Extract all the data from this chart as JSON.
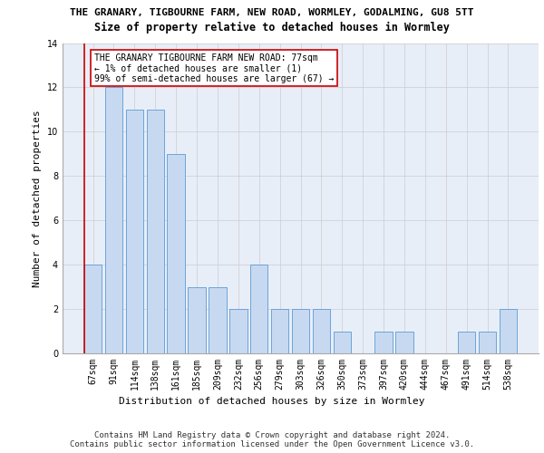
{
  "title_line1": "THE GRANARY, TIGBOURNE FARM, NEW ROAD, WORMLEY, GODALMING, GU8 5TT",
  "title_line2": "Size of property relative to detached houses in Wormley",
  "xlabel": "Distribution of detached houses by size in Wormley",
  "ylabel": "Number of detached properties",
  "categories": [
    "67sqm",
    "91sqm",
    "114sqm",
    "138sqm",
    "161sqm",
    "185sqm",
    "209sqm",
    "232sqm",
    "256sqm",
    "279sqm",
    "303sqm",
    "326sqm",
    "350sqm",
    "373sqm",
    "397sqm",
    "420sqm",
    "444sqm",
    "467sqm",
    "491sqm",
    "514sqm",
    "538sqm"
  ],
  "values": [
    4,
    12,
    11,
    11,
    9,
    3,
    3,
    2,
    4,
    2,
    2,
    2,
    1,
    0,
    1,
    1,
    0,
    0,
    1,
    1,
    2
  ],
  "bar_color": "#c7d9f0",
  "bar_edge_color": "#5b9bd5",
  "highlight_index": 0,
  "highlight_line_color": "#cc0000",
  "annotation_text": "THE GRANARY TIGBOURNE FARM NEW ROAD: 77sqm\n← 1% of detached houses are smaller (1)\n99% of semi-detached houses are larger (67) →",
  "annotation_box_edge_color": "#cc0000",
  "ylim": [
    0,
    14
  ],
  "yticks": [
    0,
    2,
    4,
    6,
    8,
    10,
    12,
    14
  ],
  "grid_color": "#cccccc",
  "background_color": "#e8eef8",
  "footer_line1": "Contains HM Land Registry data © Crown copyright and database right 2024.",
  "footer_line2": "Contains public sector information licensed under the Open Government Licence v3.0.",
  "title_fontsize": 8.0,
  "subtitle_fontsize": 8.5,
  "axis_label_fontsize": 8.0,
  "tick_fontsize": 7.0,
  "annotation_fontsize": 7.0,
  "footer_fontsize": 6.5
}
